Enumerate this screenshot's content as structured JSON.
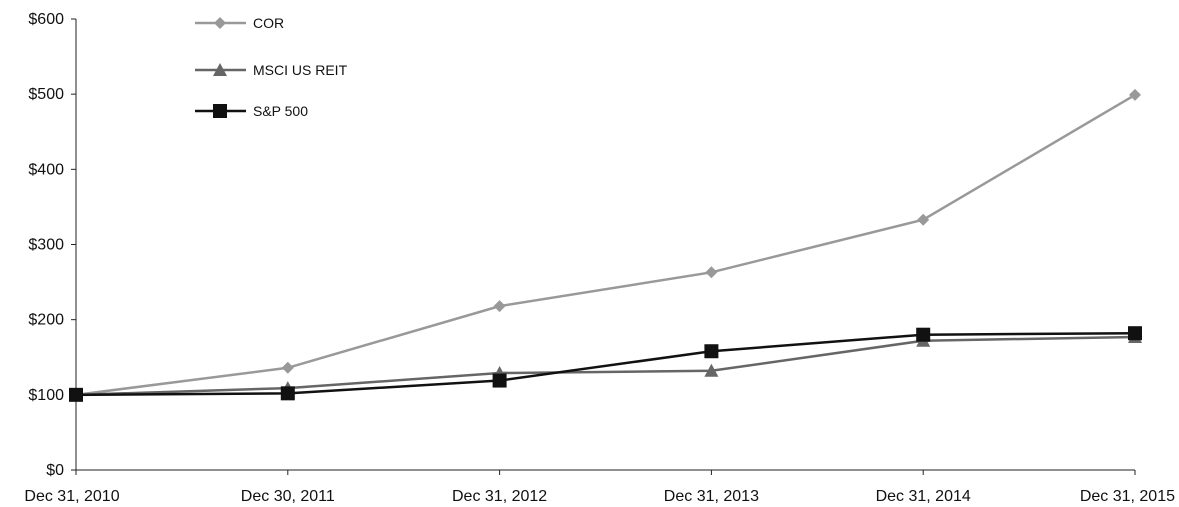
{
  "chart_data": {
    "type": "line",
    "categories": [
      "Dec 31, 2010",
      "Dec 30, 2011",
      "Dec 31, 2012",
      "Dec 31, 2013",
      "Dec 31, 2014",
      "Dec 31, 2015"
    ],
    "yticks": [
      "$0",
      "$100",
      "$200",
      "$300",
      "$400",
      "$500",
      "$600"
    ],
    "ylim": [
      0,
      600
    ],
    "grid": false,
    "legend_position": "top-left",
    "series": [
      {
        "name": "COR",
        "marker": "diamond",
        "color": "#999999",
        "values": [
          100,
          136,
          218,
          263,
          333,
          499
        ]
      },
      {
        "name": "MSCI US REIT",
        "marker": "triangle",
        "color": "#666666",
        "values": [
          100,
          109,
          129,
          132,
          172,
          177
        ]
      },
      {
        "name": "S&P 500",
        "marker": "square",
        "color": "#111111",
        "values": [
          100,
          102,
          119,
          158,
          180,
          182
        ]
      }
    ]
  }
}
